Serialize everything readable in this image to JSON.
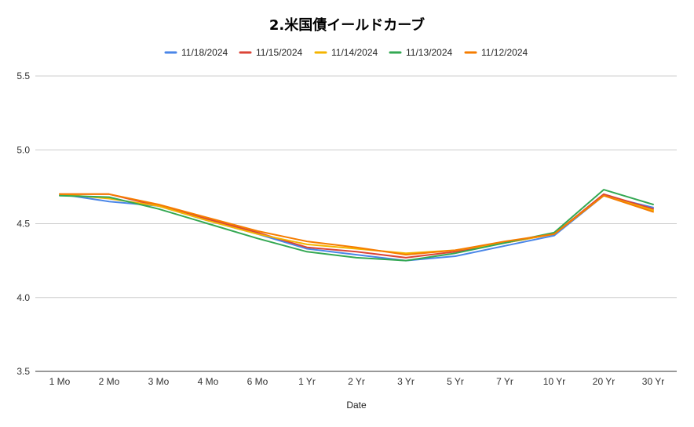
{
  "chart_data": {
    "type": "line",
    "title": "2.米国債イールドカーブ",
    "xlabel": "Date",
    "ylabel": "",
    "ylim": [
      3.5,
      5.5
    ],
    "yticks": [
      "3.5",
      "4.0",
      "4.5",
      "5.0",
      "5.5"
    ],
    "grid": true,
    "legend_position": "top",
    "categories": [
      "1 Mo",
      "2 Mo",
      "3 Mo",
      "4 Mo",
      "6 Mo",
      "1 Yr",
      "2 Yr",
      "3 Yr",
      "5 Yr",
      "7 Yr",
      "10 Yr",
      "20 Yr",
      "30 Yr"
    ],
    "series": [
      {
        "name": "11/18/2024",
        "color": "#4a86e8",
        "values": [
          4.7,
          4.65,
          4.62,
          4.52,
          4.43,
          4.33,
          4.29,
          4.25,
          4.28,
          4.35,
          4.42,
          4.69,
          4.61
        ]
      },
      {
        "name": "11/15/2024",
        "color": "#db4437",
        "values": [
          4.7,
          4.7,
          4.62,
          4.53,
          4.44,
          4.34,
          4.31,
          4.27,
          4.31,
          4.37,
          4.43,
          4.7,
          4.6
        ]
      },
      {
        "name": "11/14/2024",
        "color": "#f4b400",
        "values": [
          4.7,
          4.67,
          4.62,
          4.52,
          4.43,
          4.36,
          4.33,
          4.3,
          4.32,
          4.37,
          4.43,
          4.69,
          4.59
        ]
      },
      {
        "name": "11/13/2024",
        "color": "#34a853",
        "values": [
          4.69,
          4.68,
          4.6,
          4.5,
          4.4,
          4.31,
          4.27,
          4.25,
          4.3,
          4.37,
          4.44,
          4.73,
          4.63
        ]
      },
      {
        "name": "11/12/2024",
        "color": "#f57c00",
        "values": [
          4.7,
          4.7,
          4.63,
          4.54,
          4.45,
          4.38,
          4.34,
          4.29,
          4.32,
          4.38,
          4.43,
          4.69,
          4.58
        ]
      }
    ]
  }
}
